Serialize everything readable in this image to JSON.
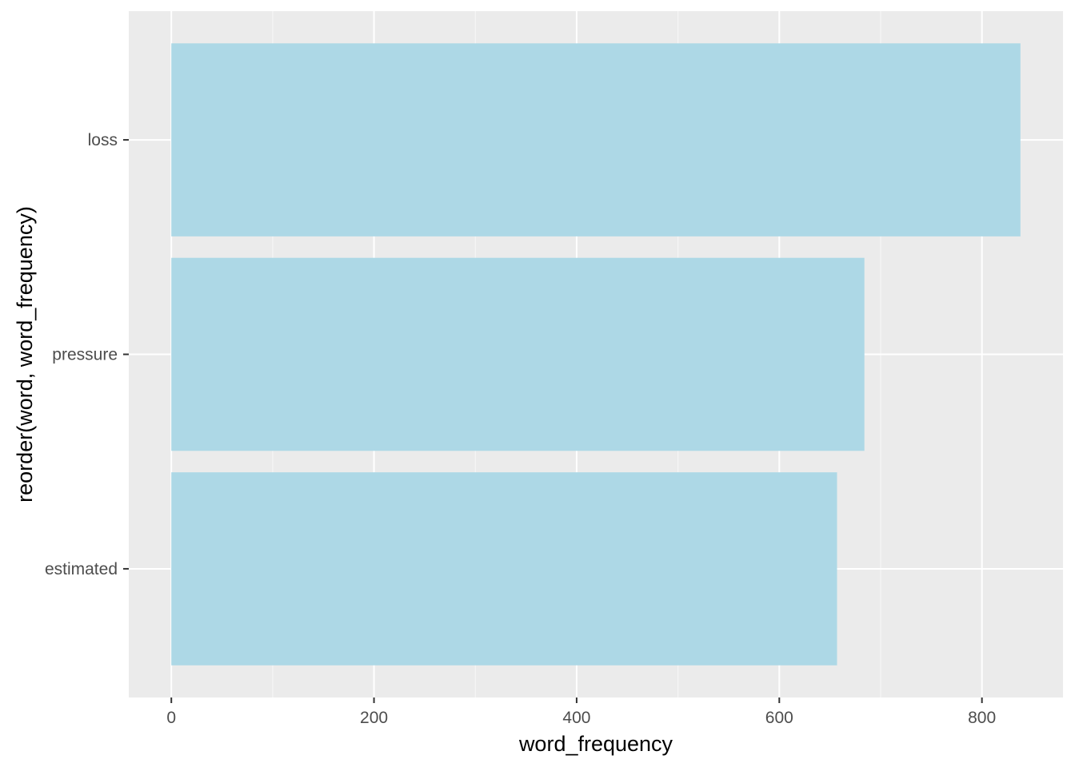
{
  "chart_data": {
    "type": "bar",
    "orientation": "horizontal",
    "categories": [
      "loss",
      "pressure",
      "estimated"
    ],
    "values": [
      838,
      684,
      657
    ],
    "xlabel": "word_frequency",
    "ylabel": "reorder(word, word_frequency)",
    "xlim": [
      -42,
      880
    ],
    "xticks": [
      0,
      200,
      400,
      600,
      800
    ],
    "xtick_labels": [
      "0",
      "200",
      "400",
      "600",
      "800"
    ],
    "minor_xticks": [
      100,
      300,
      500,
      700
    ],
    "grid": true,
    "legend": "none",
    "colors": {
      "bar": "#add8e6",
      "panel_background": "#ebebeb",
      "grid_major": "#ffffff",
      "grid_minor": "#f5f5f5",
      "tick_label": "#4d4d4d",
      "tick_mark": "#333333",
      "axis_title": "#000000"
    }
  }
}
